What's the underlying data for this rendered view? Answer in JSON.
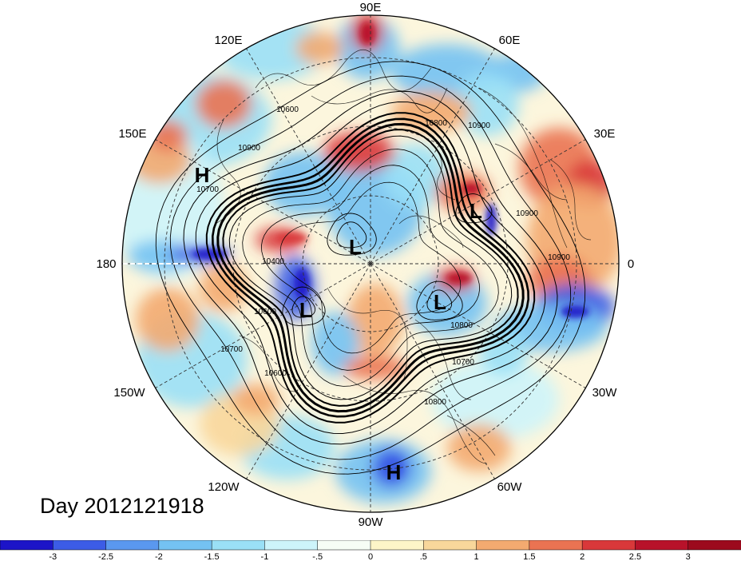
{
  "map": {
    "type": "polar-stereographic-contour-map",
    "projection": "north-polar-stereographic",
    "center": "North Pole",
    "longitude_labels": [
      "90E",
      "60E",
      "30E",
      "0",
      "30W",
      "60W",
      "90W",
      "120W",
      "150W",
      "180",
      "150E",
      "120E"
    ],
    "contour_labels": [
      "10800",
      "10900",
      "10900",
      "10400",
      "10800",
      "10900",
      "10900",
      "10600",
      "10700",
      "10600",
      "10800",
      "10700",
      "10700",
      "10600"
    ],
    "pressure_markers": [
      {
        "label": "H",
        "kind": "high"
      },
      {
        "label": "L",
        "kind": "low"
      },
      {
        "label": "L",
        "kind": "low"
      },
      {
        "label": "L",
        "kind": "low"
      },
      {
        "label": "L",
        "kind": "low"
      },
      {
        "label": "H",
        "kind": "high"
      }
    ],
    "date_label": "Day 2012121918",
    "colors": {
      "contour": "#000000",
      "coast": "#000000",
      "graticule": "#000000"
    }
  },
  "colorbar": {
    "tick_labels": [
      "-3",
      "-2.5",
      "-2",
      "-1.5",
      "-1",
      "-.5",
      "0",
      ".5",
      "1",
      "1.5",
      "2",
      "2.5",
      "3"
    ],
    "colors": [
      "#1c14c8",
      "#3c5ce6",
      "#5a98ef",
      "#74c2f2",
      "#9ae0f6",
      "#cdf4fa",
      "#f6fdf5",
      "#fdf5c8",
      "#f8d79b",
      "#f3aa70",
      "#ea7352",
      "#d9383a",
      "#b8122a",
      "#9c0a1d"
    ]
  }
}
